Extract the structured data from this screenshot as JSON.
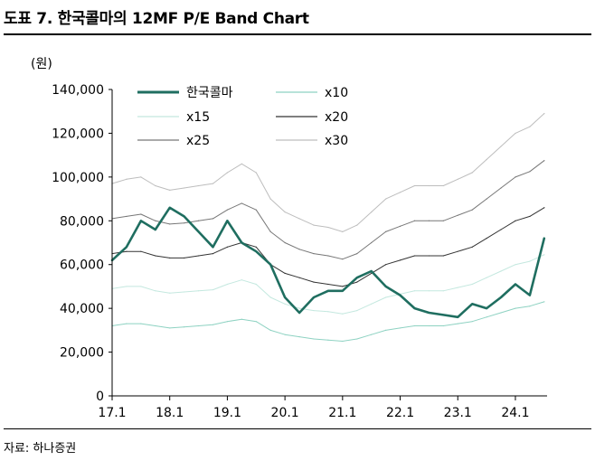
{
  "header": {
    "title": "도표 7. 한국콜마의 12MF P/E Band Chart"
  },
  "footer": {
    "source": "자료: 하나증권"
  },
  "chart_data": {
    "type": "line",
    "title": "도표 7. 한국콜마의 12MF P/E Band Chart",
    "ylabel": "(원)",
    "xlabel": "",
    "ylim": [
      0,
      140000
    ],
    "xlim": [
      2017.0,
      2024.55
    ],
    "grid": false,
    "y_ticks": [
      0,
      20000,
      40000,
      60000,
      80000,
      100000,
      120000,
      140000
    ],
    "y_tick_labels": [
      "0",
      "20,000",
      "40,000",
      "60,000",
      "80,000",
      "100,000",
      "120,000",
      "140,000"
    ],
    "x_ticks": [
      2017.0,
      2018.0,
      2019.0,
      2020.0,
      2021.0,
      2022.0,
      2023.0,
      2024.0
    ],
    "x_tick_labels": [
      "17.1",
      "18.1",
      "19.1",
      "20.1",
      "21.1",
      "22.1",
      "23.1",
      "24.1"
    ],
    "legend": {
      "position": "top-left",
      "columns": 2
    },
    "x": [
      2017.0,
      2017.25,
      2017.5,
      2017.75,
      2018.0,
      2018.25,
      2018.5,
      2018.75,
      2019.0,
      2019.25,
      2019.5,
      2019.75,
      2020.0,
      2020.25,
      2020.5,
      2020.75,
      2021.0,
      2021.25,
      2021.5,
      2021.75,
      2022.0,
      2022.25,
      2022.5,
      2022.75,
      2023.0,
      2023.25,
      2023.5,
      2023.75,
      2024.0,
      2024.25,
      2024.5
    ],
    "series": [
      {
        "name": "한국콜마",
        "color": "#1f6e60",
        "width": 2.6,
        "values": [
          62000,
          68000,
          80000,
          76000,
          86000,
          82000,
          75000,
          68000,
          80000,
          70000,
          66000,
          60000,
          45000,
          38000,
          45000,
          48000,
          48000,
          54000,
          57000,
          50000,
          46000,
          40000,
          38000,
          37000,
          36000,
          42000,
          40000,
          45000,
          51000,
          46000,
          72000
        ]
      },
      {
        "name": "x10",
        "color": "#8ed2c2",
        "width": 1,
        "values": [
          32000,
          33000,
          33000,
          32000,
          31000,
          31500,
          32000,
          32500,
          34000,
          35000,
          34000,
          30000,
          28000,
          27000,
          26000,
          25500,
          25000,
          26000,
          28000,
          30000,
          31000,
          32000,
          32000,
          32000,
          33000,
          34000,
          36000,
          38000,
          40000,
          41000,
          43000
        ]
      },
      {
        "name": "x15",
        "color": "#c4e8df",
        "width": 1,
        "values": [
          49000,
          50000,
          50000,
          48000,
          47000,
          47500,
          48000,
          48500,
          51000,
          53000,
          51000,
          45000,
          42000,
          40000,
          39000,
          38500,
          37500,
          39000,
          42000,
          45000,
          46500,
          48000,
          48000,
          48000,
          49500,
          51000,
          54000,
          57000,
          60000,
          61500,
          64500
        ]
      },
      {
        "name": "x20",
        "color": "#333333",
        "width": 1,
        "values": [
          65000,
          66000,
          66000,
          64000,
          63000,
          63000,
          64000,
          65000,
          68000,
          70000,
          68000,
          60000,
          56000,
          54000,
          52000,
          51000,
          50000,
          52000,
          56000,
          60000,
          62000,
          64000,
          64000,
          64000,
          66000,
          68000,
          72000,
          76000,
          80000,
          82000,
          86000
        ]
      },
      {
        "name": "x25",
        "color": "#777777",
        "width": 1,
        "values": [
          81000,
          82000,
          83000,
          80000,
          78500,
          79000,
          80000,
          81000,
          85000,
          88000,
          85000,
          75000,
          70000,
          67000,
          65000,
          64000,
          62500,
          65000,
          70000,
          75000,
          77500,
          80000,
          80000,
          80000,
          82500,
          85000,
          90000,
          95000,
          100000,
          102500,
          107500
        ]
      },
      {
        "name": "x30",
        "color": "#bdbdbd",
        "width": 1,
        "values": [
          97000,
          99000,
          100000,
          96000,
          94000,
          95000,
          96000,
          97000,
          102000,
          106000,
          102000,
          90000,
          84000,
          81000,
          78000,
          77000,
          75000,
          78000,
          84000,
          90000,
          93000,
          96000,
          96000,
          96000,
          99000,
          102000,
          108000,
          114000,
          120000,
          123000,
          129000
        ]
      }
    ]
  }
}
